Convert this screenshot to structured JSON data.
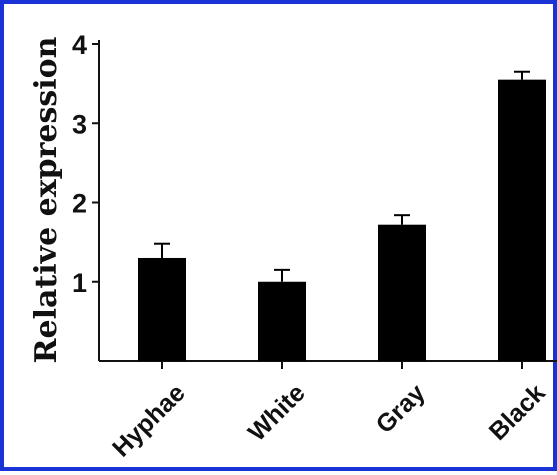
{
  "colors": {
    "border": "#1a33d6",
    "bar": "#000000",
    "axis": "#111111",
    "background": "#ffffff"
  },
  "chart_data": {
    "type": "bar",
    "title": "",
    "xlabel": "",
    "ylabel": "Relative expression",
    "categories": [
      "Hyphae",
      "White",
      "Gray",
      "Black"
    ],
    "values": [
      1.3,
      1.0,
      1.72,
      3.55
    ],
    "errors": [
      0.18,
      0.15,
      0.12,
      0.1
    ],
    "ylim": [
      0,
      4
    ],
    "yticks": [
      1,
      2,
      3,
      4
    ],
    "grid": false,
    "legend": "none"
  }
}
